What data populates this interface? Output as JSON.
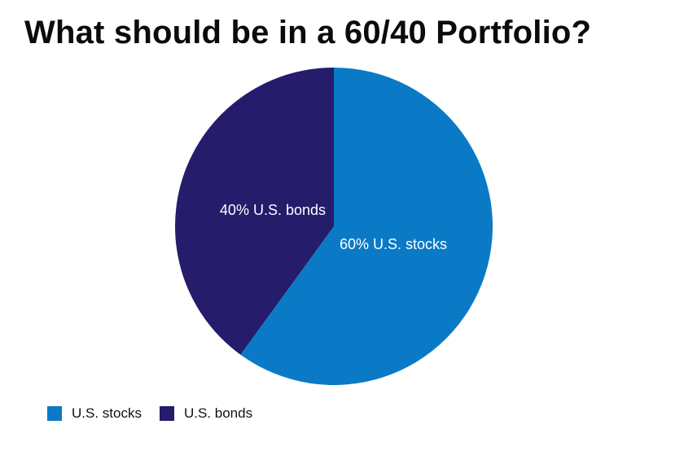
{
  "chart_data": {
    "type": "pie",
    "title": "What should be in a 60/40 Portfolio?",
    "start_angle_deg": 0,
    "direction": "clockwise",
    "slices": [
      {
        "name": "U.S. stocks",
        "value": 60,
        "label": "60% U.S. stocks",
        "color": "#0a7ac6"
      },
      {
        "name": "U.S. bonds",
        "value": 40,
        "label": "40% U.S. bonds",
        "color": "#251c6b"
      }
    ],
    "legend": {
      "position": "bottom-left",
      "entries": [
        "U.S. stocks",
        "U.S. bonds"
      ]
    }
  }
}
